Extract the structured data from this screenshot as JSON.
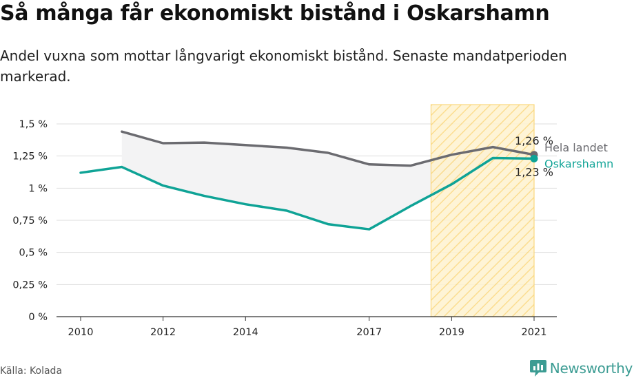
{
  "header": {
    "title": "Så många får ekonomiskt bistånd i Oskarshamn",
    "subtitle": "Andel vuxna som mottar långvarigt ekonomiskt bistånd. Senaste mandatperioden markerad."
  },
  "footer": {
    "source": "Källa: Kolada",
    "brand": "Newsworthy"
  },
  "colors": {
    "national": "#6b6b70",
    "local": "#0fa396",
    "gap_fill": "#f3f3f4",
    "period_fill": "#fde7ad",
    "period_stroke": "#fad77d",
    "grid": "#dddddd",
    "brand": "#3c9c93"
  },
  "chart_data": {
    "type": "line",
    "x_range": [
      2009.5,
      2021.6
    ],
    "ylim": [
      0,
      1.65
    ],
    "y_ticks": [
      0,
      0.25,
      0.5,
      0.75,
      1,
      1.25,
      1.5
    ],
    "y_tick_labels": [
      "0 %",
      "0,25 %",
      "0,5 %",
      "0,75 %",
      "1 %",
      "1,25 %",
      "1,5 %"
    ],
    "x_ticks": [
      2010,
      2012,
      2014,
      2017,
      2019,
      2021
    ],
    "x_tick_labels": [
      "2010",
      "2012",
      "2014",
      "2017",
      "2019",
      "2021"
    ],
    "highlight_period": [
      2018.5,
      2021
    ],
    "grid": "horizontal",
    "series": [
      {
        "name": "Hela landet",
        "key": "national",
        "x": [
          2011,
          2012,
          2013,
          2014,
          2015,
          2016,
          2017,
          2018,
          2019,
          2020,
          2021
        ],
        "values": [
          1.44,
          1.35,
          1.355,
          1.335,
          1.315,
          1.275,
          1.185,
          1.175,
          1.26,
          1.32,
          1.26
        ],
        "end_label": "1,26 %"
      },
      {
        "name": "Oskarshamn",
        "key": "local",
        "x": [
          2010,
          2011,
          2012,
          2013,
          2014,
          2015,
          2016,
          2017,
          2018,
          2019,
          2020,
          2021
        ],
        "values": [
          1.12,
          1.165,
          1.02,
          0.94,
          0.875,
          0.825,
          0.72,
          0.68,
          0.86,
          1.03,
          1.235,
          1.23
        ],
        "end_label": "1,23 %"
      }
    ]
  }
}
